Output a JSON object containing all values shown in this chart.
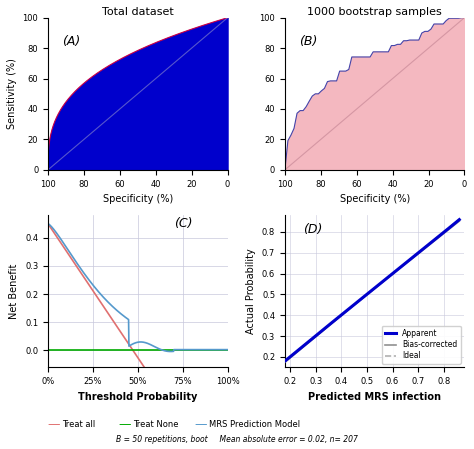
{
  "title_A": "Total dataset",
  "title_B": "1000 bootstrap samples",
  "label_A": "(A)",
  "label_B": "(B)",
  "label_C": "(C)",
  "label_D": "(D)",
  "xlabel_AB": "Specificity (%)",
  "ylabel_A": "Sensitivity (%)",
  "ylabel_C": "Net Benefit",
  "xlabel_C": "Threshold Probability",
  "ylabel_D": "Actual Probability",
  "xlabel_D": "Predicted MRS infection",
  "subtitle_D": "B = 50 repetitions, boot     Mean absolute error = 0.02, n= 207",
  "roc_fill_color_A": "#0000CC",
  "roc_line_color_A": "#CC0044",
  "roc_fill_color_B": "#F4B8C0",
  "roc_line_color_B": "#4444AA",
  "diag_color_A": "#9090CC",
  "diag_color_B": "#C08090",
  "dca_treat_all_color": "#E07070",
  "dca_treat_none_color": "#00AA00",
  "dca_model_color": "#5599CC",
  "calib_apparent_color": "#0000CC",
  "calib_bias_color": "#909090",
  "calib_ideal_color": "#B0B0B0",
  "legend_C": [
    "Treat all",
    "Treat None",
    "MRS Prediction Model"
  ],
  "legend_D": [
    "Apparent",
    "Bias-corrected",
    "Ideal"
  ],
  "bg_color": "#FFFFFF",
  "grid_color": "#C8C8DC"
}
